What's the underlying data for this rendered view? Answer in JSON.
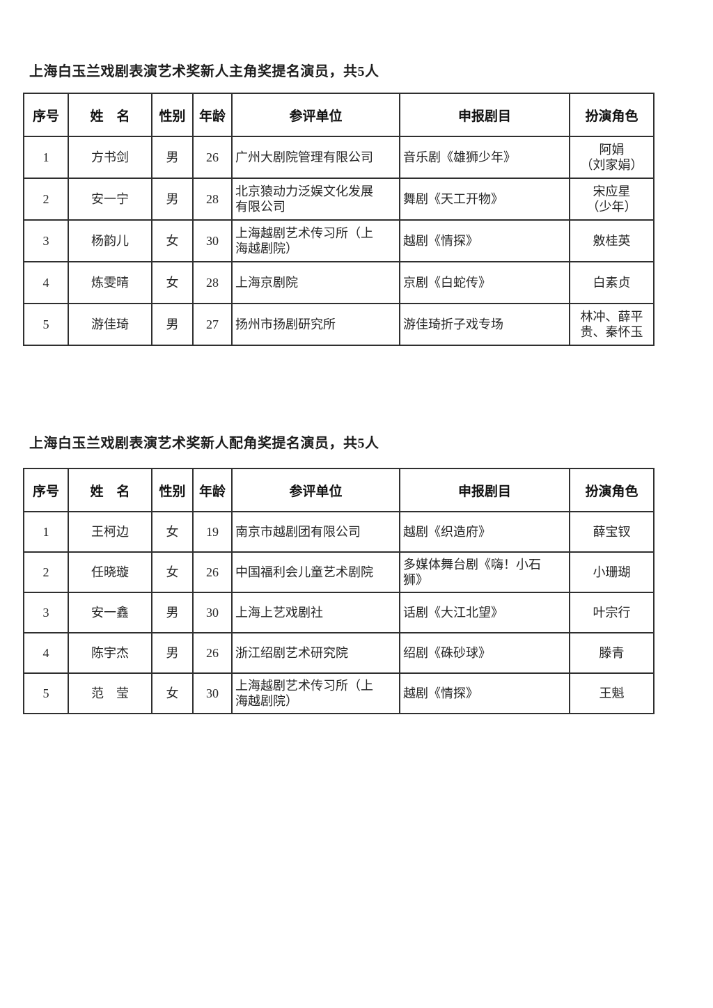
{
  "tables": [
    {
      "title": "上海白玉兰戏剧表演艺术奖新人主角奖提名演员，共5人",
      "columns": [
        "序号",
        "姓　名",
        "性别",
        "年龄",
        "参评单位",
        "申报剧目",
        "扮演角色"
      ],
      "rows": [
        {
          "no": "1",
          "name": "方书剑",
          "gender": "男",
          "age": "26",
          "unit": "广州大剧院管理有限公司",
          "play": "音乐剧《雄狮少年》",
          "role": "阿娟\n（刘家娟）"
        },
        {
          "no": "2",
          "name": "安一宁",
          "gender": "男",
          "age": "28",
          "unit": "北京猿动力泛娱文化发展\n有限公司",
          "play": "舞剧《天工开物》",
          "role": "宋应星\n（少年）"
        },
        {
          "no": "3",
          "name": "杨韵儿",
          "gender": "女",
          "age": "30",
          "unit": "上海越剧艺术传习所（上\n海越剧院）",
          "play": "越剧《情探》",
          "role": "敫桂英"
        },
        {
          "no": "4",
          "name": "炼雯晴",
          "gender": "女",
          "age": "28",
          "unit": "上海京剧院",
          "play": "京剧《白蛇传》",
          "role": "白素贞"
        },
        {
          "no": "5",
          "name": "游佳琦",
          "gender": "男",
          "age": "27",
          "unit": "扬州市扬剧研究所",
          "play": "游佳琦折子戏专场",
          "role": "林冲、薛平\n贵、秦怀玉"
        }
      ]
    },
    {
      "title": "上海白玉兰戏剧表演艺术奖新人配角奖提名演员，共5人",
      "columns": [
        "序号",
        "姓　名",
        "性别",
        "年龄",
        "参评单位",
        "申报剧目",
        "扮演角色"
      ],
      "rows": [
        {
          "no": "1",
          "name": "王柯边",
          "gender": "女",
          "age": "19",
          "unit": "南京市越剧团有限公司",
          "play": "越剧《织造府》",
          "role": "薛宝钗"
        },
        {
          "no": "2",
          "name": "任晓璇",
          "gender": "女",
          "age": "26",
          "unit": "中国福利会儿童艺术剧院",
          "play": "多媒体舞台剧《嗨！小石\n狮》",
          "role": "小珊瑚"
        },
        {
          "no": "3",
          "name": "安一鑫",
          "gender": "男",
          "age": "30",
          "unit": "上海上艺戏剧社",
          "play": "话剧《大江北望》",
          "role": "叶宗行"
        },
        {
          "no": "4",
          "name": "陈宇杰",
          "gender": "男",
          "age": "26",
          "unit": "浙江绍剧艺术研究院",
          "play": "绍剧《硃砂球》",
          "role": "滕青"
        },
        {
          "no": "5",
          "name": "范　莹",
          "gender": "女",
          "age": "30",
          "unit": "上海越剧艺术传习所（上\n海越剧院）",
          "play": "越剧《情探》",
          "role": "王魁"
        }
      ]
    }
  ]
}
